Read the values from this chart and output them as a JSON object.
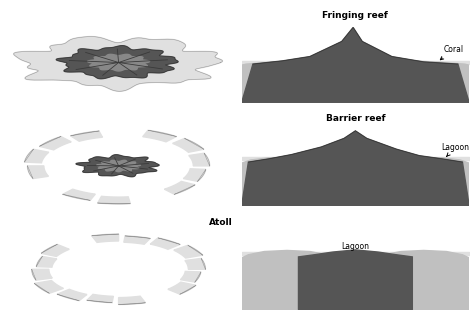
{
  "bg_color": "#ffffff",
  "dark_gray": "#555555",
  "mid_gray": "#888888",
  "light_gray": "#c0c0c0",
  "very_light_gray": "#e0e0e0",
  "outline_color": "#999999",
  "text_color": "#000000",
  "labels": {
    "fringing": "Fringing reef",
    "barrier": "Barrier reef",
    "atoll": "Atoll",
    "coral": "Coral",
    "lagoon_barrier": "Lagoon",
    "lagoon_atoll": "Lagoon"
  },
  "font_size_title": 6.5,
  "font_size_label": 5.5
}
